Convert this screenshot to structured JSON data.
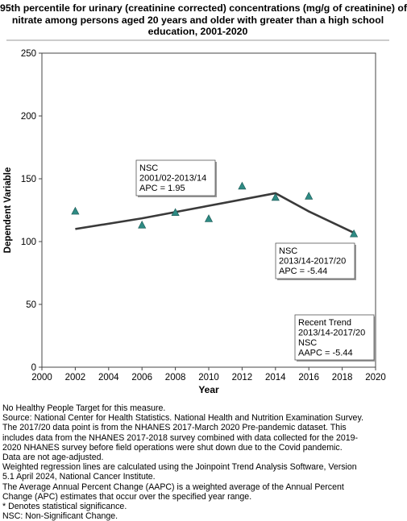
{
  "chart_data": {
    "type": "scatter",
    "title_lines": [
      "95th percentile for urinary (creatinine corrected) concentrations (mg/g of creatinine) of",
      "nitrate among  persons aged 20 years and older with greater than a high school",
      "education, 2001-2020"
    ],
    "xlabel": "Year",
    "ylabel": "Dependent Variable",
    "xlim": [
      2000,
      2020
    ],
    "ylim": [
      0,
      250
    ],
    "x_ticks": [
      2000,
      2002,
      2004,
      2006,
      2008,
      2010,
      2012,
      2014,
      2016,
      2018,
      2020
    ],
    "y_ticks": [
      0,
      50,
      100,
      150,
      200,
      250
    ],
    "grid": false,
    "points": {
      "marker": "triangle",
      "color": "#2e8b84",
      "x": [
        2002,
        2006,
        2008,
        2010,
        2012,
        2014,
        2016,
        2018.7
      ],
      "y": [
        124,
        113,
        123,
        118,
        144,
        135,
        136,
        106
      ]
    },
    "trend_line": {
      "color": "#3a3a3a",
      "x": [
        2002,
        2006,
        2014,
        2016,
        2018.7
      ],
      "y": [
        110,
        118.5,
        138.5,
        124,
        107
      ]
    },
    "annotations": [
      {
        "lines": [
          "NSC",
          "2001/02-2013/14",
          "APC =  1.95"
        ]
      },
      {
        "lines": [
          "NSC",
          "2013/14-2017/20",
          "APC = -5.44"
        ]
      },
      {
        "lines": [
          "Recent Trend",
          "2013/14-2017/20",
          "NSC",
          "AAPC = -5.44"
        ]
      }
    ]
  },
  "footnotes": [
    "No Healthy People Target for this measure.",
    "Source: National Center for Health Statistics. National Health and Nutrition Examination Survey.",
    "The 2017/20 data point is from the NHANES 2017-March 2020 Pre-pandemic dataset. This",
    "includes data from the NHANES 2017-2018 survey combined with data collected for the 2019-",
    "2020 NHANES survey before field operations were shut down due to the Covid pandemic.",
    "Data are not age-adjusted.",
    "Weighted regression lines are calculated using the Joinpoint Trend Analysis Software, Version",
    "5.1 April 2024, National Cancer Institute.",
    "The Average Annual Percent Change (AAPC) is a weighted average of the Annual Percent",
    "Change (APC) estimates that occur over the specified year range.",
    "* Denotes statistical significance.",
    "NSC: Non-Significant Change."
  ]
}
